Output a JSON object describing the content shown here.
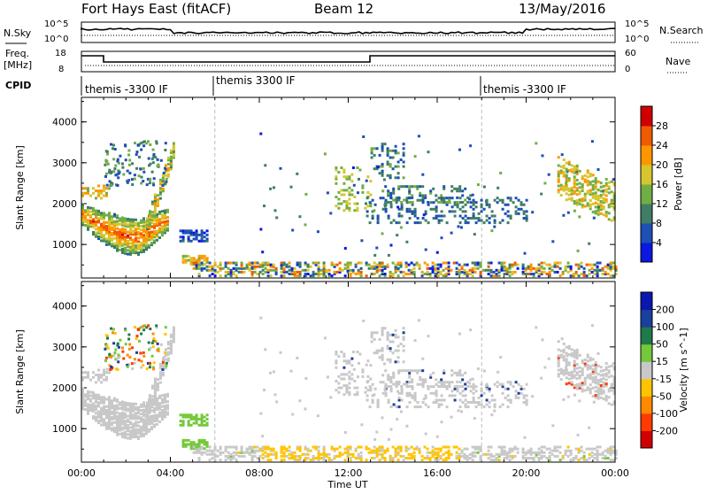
{
  "header": {
    "radar": "Fort Hays East (fitACF)",
    "beam": "Beam 12",
    "date": "13/May/2016"
  },
  "status_panels": {
    "nsky": {
      "label": "N.Sky",
      "ticks": [
        "10^5",
        "10^0"
      ],
      "right_label": "N.Search",
      "right_ticks": [
        "10^5",
        "10^0"
      ]
    },
    "freq": {
      "label": "Freq.",
      "unit": "[MHz]",
      "ticks": [
        "18",
        "8"
      ],
      "right_label": "Nave",
      "right_ticks": [
        "60",
        "0"
      ]
    },
    "cpid": {
      "label": "CPID",
      "segments": [
        {
          "name": "themis -3300 IF",
          "start": 0,
          "end": 6
        },
        {
          "name": "themis 3300 IF",
          "start": 6,
          "end": 18
        },
        {
          "name": "themis -3300 IF",
          "start": 18,
          "end": 24
        }
      ]
    }
  },
  "chart_data": [
    {
      "type": "heatmap",
      "title": "",
      "xlabel": "",
      "ylabel": "Slant Range [km]",
      "xlim": [
        0,
        24
      ],
      "ylim": [
        180,
        4600
      ],
      "yticks": [
        1000,
        2000,
        3000,
        4000
      ],
      "ytick_labels": [
        "1000",
        "2000",
        "3000",
        "4000"
      ],
      "colorbar": {
        "label": "Power [dB]",
        "ticks": [
          "4",
          "8",
          "12",
          "16",
          "20",
          "24",
          "28"
        ],
        "range": [
          0,
          32
        ],
        "colors": [
          "#0a18e0",
          "#1d4fb5",
          "#3f7e64",
          "#71ad45",
          "#d6c52e",
          "#ff9600",
          "#f05a00",
          "#d00000"
        ]
      },
      "features": [
        {
          "name": "e-region near-range echoes",
          "t": [
            0.0,
            3.9
          ],
          "r": [
            1050,
            2200
          ],
          "value": 24
        },
        {
          "name": "ascending arc",
          "t": [
            3.0,
            4.2
          ],
          "r": [
            1400,
            3500
          ],
          "value": 14
        },
        {
          "name": "post-midnight patches",
          "t": [
            11.5,
            20.0
          ],
          "r": [
            1500,
            3400
          ],
          "value": 9
        },
        {
          "name": "dawn echoes",
          "t": [
            21.5,
            24.0
          ],
          "r": [
            1700,
            3200
          ],
          "value": 15
        },
        {
          "name": "ground scatter band",
          "t": [
            5.0,
            24.0
          ],
          "r": [
            180,
            600
          ],
          "value": 11
        }
      ]
    },
    {
      "type": "heatmap",
      "title": "",
      "xlabel": "Time UT",
      "ylabel": "Slant Range [km]",
      "xlim": [
        0,
        24
      ],
      "xticks": [
        "00:00",
        "04:00",
        "08:00",
        "12:00",
        "16:00",
        "20:00",
        "00:00"
      ],
      "ylim": [
        180,
        4600
      ],
      "yticks": [
        1000,
        2000,
        3000,
        4000
      ],
      "ytick_labels": [
        "1000",
        "2000",
        "3000",
        "4000"
      ],
      "colorbar": {
        "label": "Velocity [m s^-1]",
        "ticks": [
          "200",
          "100",
          "50",
          "15",
          "-15",
          "-50",
          "-100",
          "-200"
        ],
        "range": [
          -250,
          250
        ],
        "colors": [
          "#d10000",
          "#ff3b00",
          "#ff8a00",
          "#ffc400",
          "#c8c8c8",
          "#74c83a",
          "#1f7a4a",
          "#1a3f9c",
          "#0a18b0"
        ]
      },
      "features": [
        {
          "name": "e-region near-range echoes",
          "t": [
            0.0,
            3.9
          ],
          "r": [
            1050,
            2200
          ],
          "value": 0
        },
        {
          "name": "westward flow patches",
          "t": [
            3.8,
            5.5
          ],
          "r": [
            500,
            1350
          ],
          "value": 60
        },
        {
          "name": "ground scatter band",
          "t": [
            8.0,
            17.0
          ],
          "r": [
            180,
            520
          ],
          "value": -40
        },
        {
          "name": "post-midnight patches",
          "t": [
            11.5,
            20.0
          ],
          "r": [
            1500,
            3400
          ],
          "value": 0
        }
      ]
    }
  ]
}
